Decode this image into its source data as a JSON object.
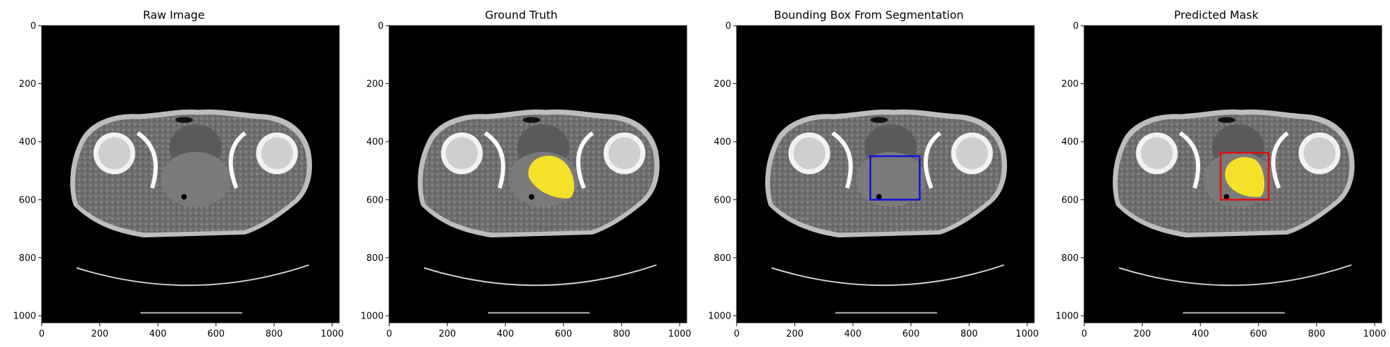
{
  "panels": [
    {
      "title": "Raw Image",
      "overlay": "none"
    },
    {
      "title": "Ground Truth",
      "overlay": "mask"
    },
    {
      "title": "Bounding Box From Segmentation",
      "overlay": "box"
    },
    {
      "title": "Predicted Mask",
      "overlay": "mask-box"
    }
  ],
  "axes": {
    "xticks": [
      "0",
      "200",
      "400",
      "600",
      "800",
      "1000"
    ],
    "yticks": [
      "0",
      "200",
      "400",
      "600",
      "800",
      "1000"
    ],
    "xlim": [
      0,
      1024
    ],
    "ylim": [
      1024,
      0
    ]
  },
  "overlays": {
    "ground_truth_mask_color": "#f5e12a",
    "predicted_mask_color": "#f5e12a",
    "segmentation_box": {
      "x0": 460,
      "y0": 450,
      "x1": 630,
      "y1": 600,
      "color": "#1010e0"
    },
    "prediction_box": {
      "x0": 470,
      "y0": 438,
      "x1": 635,
      "y1": 600,
      "color": "#e01010"
    }
  }
}
